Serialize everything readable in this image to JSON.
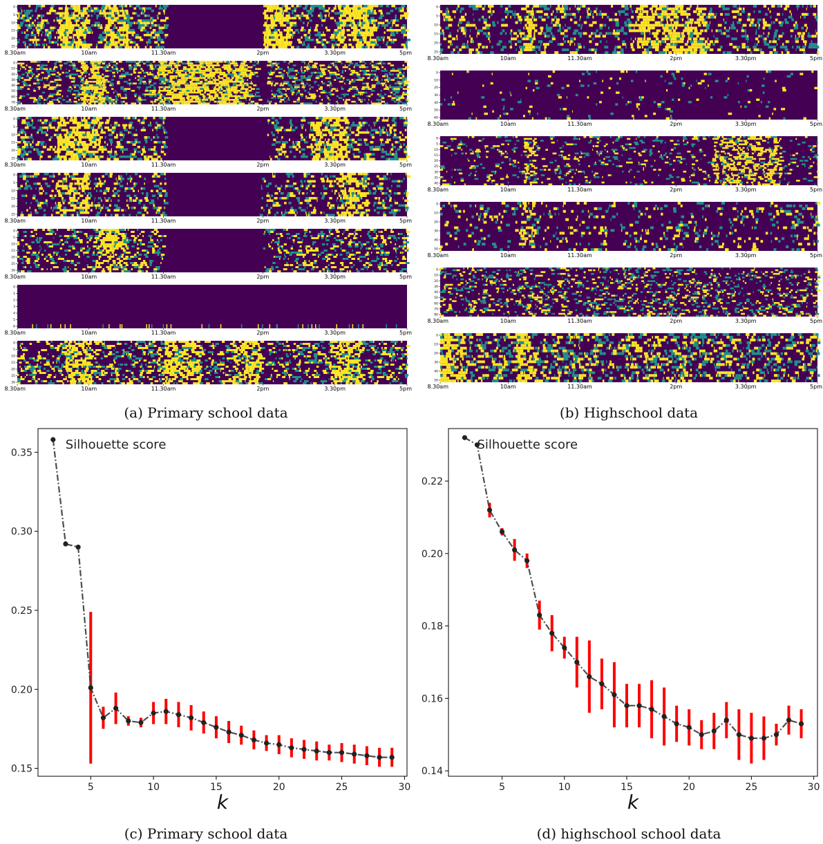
{
  "figure": {
    "time_ticks": [
      "8.30am",
      "10am",
      "11.30am",
      "2pm",
      "3.30pm",
      "5pm"
    ],
    "panels": [
      {
        "id": "a",
        "caption": "(a) Primary school data",
        "heatmaps": [
          {
            "ytick_labels": [
              "0",
              "5",
              "10",
              "15",
              "20",
              "25"
            ],
            "active": [
              [
                0.0,
                0.38
              ],
              [
                0.63,
                1.0
              ]
            ],
            "density": 0.42,
            "hot": [
              [
                0.1,
                0.18
              ],
              [
                0.22,
                0.28
              ],
              [
                0.63,
                0.7
              ],
              [
                0.82,
                0.92
              ]
            ]
          },
          {
            "ytick_labels": [
              "0",
              "10",
              "20",
              "30",
              "40",
              "50",
              "60",
              "70"
            ],
            "active": [
              [
                0.0,
                0.62
              ],
              [
                0.64,
                1.0
              ]
            ],
            "density": 0.38,
            "hot": [
              [
                0.16,
                0.22
              ],
              [
                0.36,
                0.6
              ]
            ]
          },
          {
            "ytick_labels": [
              "0",
              "5",
              "10",
              "15",
              "20",
              "25"
            ],
            "active": [
              [
                0.0,
                0.38
              ],
              [
                0.64,
                1.0
              ]
            ],
            "density": 0.36,
            "hot": [
              [
                0.1,
                0.22
              ],
              [
                0.75,
                0.85
              ]
            ]
          },
          {
            "ytick_labels": [
              "0",
              "5",
              "10",
              "15",
              "20",
              "25"
            ],
            "active": [
              [
                0.0,
                0.38
              ],
              [
                0.62,
                1.0
              ]
            ],
            "density": 0.28,
            "hot": [
              [
                0.1,
                0.18
              ],
              [
                0.82,
                0.9
              ]
            ]
          },
          {
            "ytick_labels": [
              "0",
              "5",
              "10",
              "15",
              "20",
              "25",
              "30"
            ],
            "active": [
              [
                0.0,
                0.38
              ],
              [
                0.63,
                1.0
              ]
            ],
            "density": 0.3,
            "hot": [
              [
                0.2,
                0.28
              ]
            ]
          },
          {
            "ytick_labels": [
              "0",
              "1",
              "2",
              "3",
              "4",
              "5",
              "6"
            ],
            "active": [],
            "density": 0.02,
            "hot": []
          },
          {
            "ytick_labels": [
              "0",
              "5",
              "10",
              "15",
              "20",
              "25",
              "30"
            ],
            "active": [
              [
                0.0,
                1.0
              ]
            ],
            "density": 0.34,
            "hot": [
              [
                0.12,
                0.19
              ],
              [
                0.37,
                0.47
              ],
              [
                0.55,
                0.62
              ],
              [
                0.8,
                0.88
              ]
            ]
          }
        ]
      },
      {
        "id": "b",
        "caption": "(b) Highschool data",
        "heatmaps": [
          {
            "ytick_labels": [
              "0",
              "5",
              "10",
              "15",
              "20",
              "25"
            ],
            "active": [
              [
                0.0,
                0.25
              ],
              [
                0.25,
                1.0
              ]
            ],
            "density": 0.32,
            "hot": [
              [
                0.22,
                0.25
              ],
              [
                0.52,
                0.7
              ]
            ]
          },
          {
            "ytick_labels": [
              "0",
              "10",
              "20",
              "30",
              "40",
              "50",
              "60"
            ],
            "active": [
              [
                0.0,
                1.0
              ]
            ],
            "density": 0.05,
            "hot": []
          },
          {
            "ytick_labels": [
              "0",
              "5",
              "10",
              "15",
              "20",
              "25",
              "30",
              "35",
              "40"
            ],
            "active": [
              [
                0.0,
                1.0
              ]
            ],
            "density": 0.16,
            "hot": [
              [
                0.22,
                0.25
              ],
              [
                0.72,
                0.9
              ]
            ]
          },
          {
            "ytick_labels": [
              "0",
              "10",
              "20",
              "30",
              "40",
              "50"
            ],
            "active": [
              [
                0.0,
                1.0
              ]
            ],
            "density": 0.16,
            "hot": [
              [
                0.21,
                0.25
              ]
            ]
          },
          {
            "ytick_labels": [
              "0",
              "10",
              "20",
              "30",
              "40",
              "50",
              "60",
              "70",
              "80"
            ],
            "active": [
              [
                0.0,
                1.0
              ]
            ],
            "density": 0.26,
            "hot": []
          },
          {
            "ytick_labels": [
              "0",
              "10",
              "20",
              "30",
              "40",
              "50"
            ],
            "active": [
              [
                0.0,
                1.0
              ]
            ],
            "density": 0.4,
            "hot": [
              [
                0.0,
                0.06
              ],
              [
                0.2,
                0.24
              ]
            ]
          }
        ]
      },
      {
        "id": "c",
        "caption": "(c) Primary school data"
      },
      {
        "id": "d",
        "caption": "(d) highschool school data"
      }
    ]
  },
  "chart_data": [
    {
      "panel": "a",
      "type": "heatmap",
      "title": "",
      "xlabel": "",
      "ylabel": "",
      "x_tick_labels": [
        "8.30am",
        "10am",
        "11.30am",
        "2pm",
        "3.30pm",
        "5pm"
      ],
      "subplots": 7,
      "colormap": "viridis"
    },
    {
      "panel": "b",
      "type": "heatmap",
      "title": "",
      "xlabel": "",
      "ylabel": "",
      "x_tick_labels": [
        "8.30am",
        "10am",
        "11.30am",
        "2pm",
        "3.30pm",
        "5pm"
      ],
      "subplots": 6,
      "colormap": "viridis"
    },
    {
      "panel": "c",
      "type": "line",
      "title": "",
      "xlabel": "k",
      "ylabel": "",
      "legend_text": "Silhouette score",
      "legend_placement": "top-left",
      "xlim": [
        0.8,
        30.2
      ],
      "ylim": [
        0.145,
        0.365
      ],
      "xticks": [
        5,
        10,
        15,
        20,
        25,
        30
      ],
      "yticks": [
        0.15,
        0.2,
        0.25,
        0.3,
        0.35
      ],
      "ytick_labels": [
        "0.15",
        "0.20",
        "0.25",
        "0.30",
        "0.35"
      ],
      "line_color": "#3a3a3a",
      "errorbar_color": "#ff0000",
      "series": [
        {
          "x": [
            2,
            3,
            4,
            5,
            6,
            7,
            8,
            9,
            10,
            11,
            12,
            13,
            14,
            15,
            16,
            17,
            18,
            19,
            20,
            21,
            22,
            23,
            24,
            25,
            26,
            27,
            28,
            29
          ],
          "values": [
            0.358,
            0.292,
            0.29,
            0.201,
            0.182,
            0.188,
            0.18,
            0.179,
            0.185,
            0.186,
            0.184,
            0.182,
            0.179,
            0.176,
            0.173,
            0.171,
            0.168,
            0.166,
            0.165,
            0.163,
            0.162,
            0.161,
            0.16,
            0.16,
            0.159,
            0.158,
            0.157,
            0.157
          ],
          "errors": [
            0.0,
            0.0,
            0.0,
            0.048,
            0.007,
            0.01,
            0.003,
            0.003,
            0.007,
            0.008,
            0.008,
            0.008,
            0.007,
            0.007,
            0.007,
            0.006,
            0.006,
            0.005,
            0.006,
            0.006,
            0.006,
            0.006,
            0.005,
            0.006,
            0.006,
            0.006,
            0.006,
            0.006
          ]
        }
      ]
    },
    {
      "panel": "d",
      "type": "line",
      "title": "",
      "xlabel": "k",
      "ylabel": "",
      "legend_text": "Silhouette score",
      "legend_placement": "top-left",
      "xlim": [
        0.7,
        30.3
      ],
      "ylim": [
        0.1385,
        0.2345
      ],
      "xticks": [
        5,
        10,
        15,
        20,
        25,
        30
      ],
      "yticks": [
        0.14,
        0.16,
        0.18,
        0.2,
        0.22
      ],
      "ytick_labels": [
        "0.14",
        "0.16",
        "0.18",
        "0.20",
        "0.22"
      ],
      "line_color": "#3a3a3a",
      "errorbar_color": "#ff0000",
      "series": [
        {
          "x": [
            2,
            3,
            4,
            5,
            6,
            7,
            8,
            9,
            10,
            11,
            12,
            13,
            14,
            15,
            16,
            17,
            18,
            19,
            20,
            21,
            22,
            23,
            24,
            25,
            26,
            27,
            28,
            29
          ],
          "values": [
            0.232,
            0.23,
            0.212,
            0.206,
            0.201,
            0.198,
            0.183,
            0.178,
            0.174,
            0.17,
            0.166,
            0.164,
            0.161,
            0.158,
            0.158,
            0.157,
            0.155,
            0.153,
            0.152,
            0.15,
            0.151,
            0.154,
            0.15,
            0.149,
            0.149,
            0.15,
            0.154,
            0.153
          ],
          "errors": [
            0.0,
            0.0,
            0.002,
            0.001,
            0.003,
            0.002,
            0.004,
            0.005,
            0.003,
            0.007,
            0.01,
            0.007,
            0.009,
            0.006,
            0.006,
            0.008,
            0.008,
            0.005,
            0.005,
            0.004,
            0.005,
            0.005,
            0.007,
            0.007,
            0.006,
            0.003,
            0.004,
            0.004
          ]
        }
      ]
    }
  ]
}
